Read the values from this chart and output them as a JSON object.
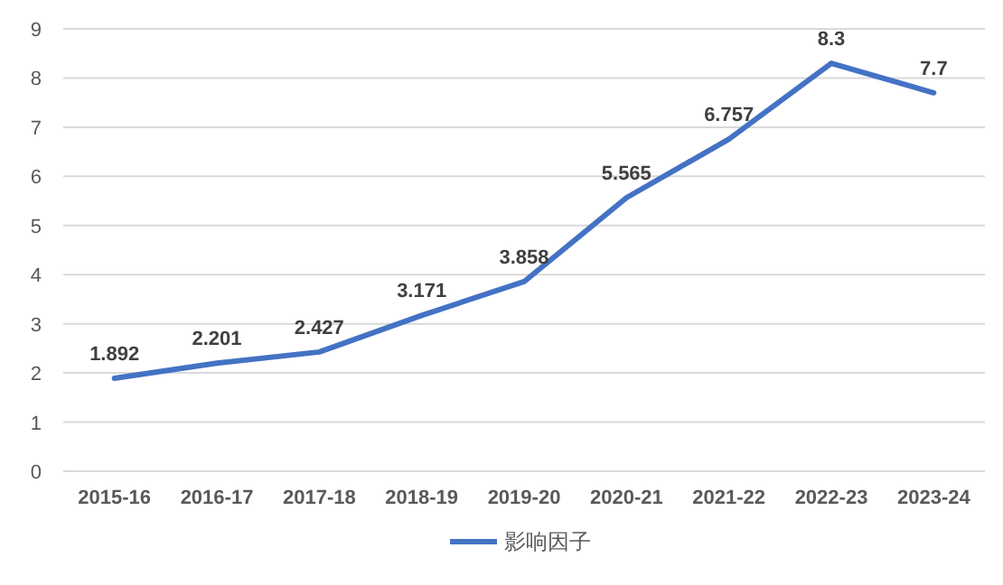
{
  "chart_data": {
    "type": "line",
    "categories": [
      "2015-16",
      "2016-17",
      "2017-18",
      "2018-19",
      "2019-20",
      "2020-21",
      "2021-22",
      "2022-23",
      "2023-24"
    ],
    "series": [
      {
        "name": "影响因子",
        "color": "#4472c4",
        "values": [
          1.892,
          2.201,
          2.427,
          3.171,
          3.858,
          5.565,
          6.757,
          8.3,
          7.7
        ]
      }
    ],
    "ylim": [
      0,
      9
    ],
    "yticks": [
      0,
      1,
      2,
      3,
      4,
      5,
      6,
      7,
      8,
      9
    ],
    "grid": "y",
    "legend": "bottom",
    "data_labels": true
  }
}
